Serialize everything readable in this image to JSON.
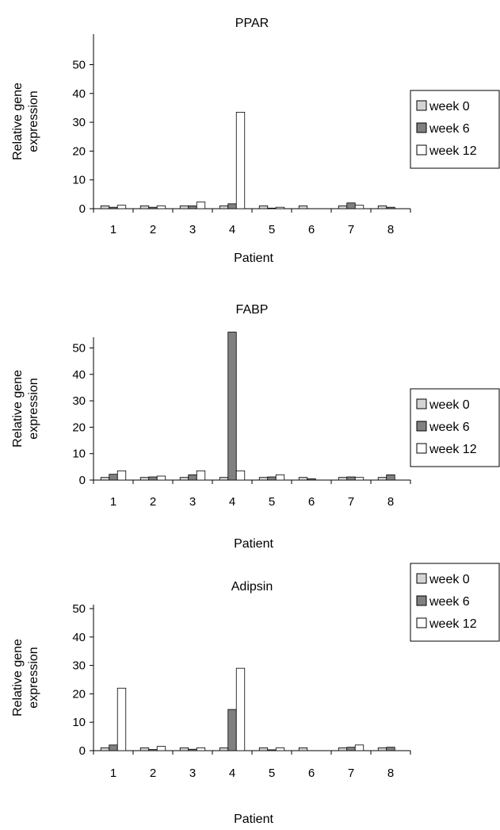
{
  "chart_data": [
    {
      "type": "bar",
      "title": "PPAR",
      "xlabel": "Patient",
      "ylabel": [
        "Relative gene",
        "expression"
      ],
      "categories": [
        "1",
        "2",
        "3",
        "4",
        "5",
        "6",
        "7",
        "8"
      ],
      "ylim": [
        0,
        50
      ],
      "yticks": [
        "0",
        "10",
        "20",
        "30",
        "40",
        "50"
      ],
      "series": [
        {
          "name": "week 0",
          "color": "#d4d4d4",
          "values": [
            1,
            1,
            1,
            1,
            1,
            1,
            1,
            1
          ]
        },
        {
          "name": "week 6",
          "color": "#808080",
          "values": [
            0.5,
            0.5,
            1,
            1.7,
            0.2,
            0,
            2,
            0.5
          ]
        },
        {
          "name": "week 12",
          "color": "#ffffff",
          "values": [
            1.2,
            1,
            2.3,
            33.5,
            0.5,
            0,
            1.2,
            0
          ]
        }
      ],
      "legend_position": "right"
    },
    {
      "type": "bar",
      "title": "FABP",
      "xlabel": "Patient",
      "ylabel": [
        "Relative gene",
        "expression"
      ],
      "categories": [
        "1",
        "2",
        "3",
        "4",
        "5",
        "6",
        "7",
        "8"
      ],
      "ylim": [
        0,
        55
      ],
      "yticks": [
        "0",
        "10",
        "20",
        "30",
        "40",
        "50"
      ],
      "series": [
        {
          "name": "week 0",
          "color": "#d4d4d4",
          "values": [
            1,
            1,
            1,
            1,
            1,
            1,
            1,
            1
          ]
        },
        {
          "name": "week 6",
          "color": "#808080",
          "values": [
            2.2,
            1.2,
            2,
            56,
            1.2,
            0.5,
            1.2,
            2
          ]
        },
        {
          "name": "week 12",
          "color": "#ffffff",
          "values": [
            3.5,
            1.5,
            3.5,
            3.5,
            2,
            0,
            1,
            0
          ]
        }
      ],
      "legend_position": "right"
    },
    {
      "type": "bar",
      "title": "Adipsin",
      "xlabel": "Patient",
      "ylabel": [
        "Relative gene",
        "expression"
      ],
      "categories": [
        "1",
        "2",
        "3",
        "4",
        "5",
        "6",
        "7",
        "8"
      ],
      "ylim": [
        0,
        50
      ],
      "yticks": [
        "0",
        "10",
        "20",
        "30",
        "40",
        "50"
      ],
      "series": [
        {
          "name": "week 0",
          "color": "#d4d4d4",
          "values": [
            1,
            1,
            1,
            1,
            1,
            1,
            1,
            1
          ]
        },
        {
          "name": "week 6",
          "color": "#808080",
          "values": [
            2,
            0.4,
            0.5,
            14.5,
            0.3,
            0,
            1.2,
            1.2
          ]
        },
        {
          "name": "week 12",
          "color": "#ffffff",
          "values": [
            22,
            1.5,
            1,
            29,
            1,
            0,
            2,
            0
          ]
        }
      ],
      "legend_position": "right"
    }
  ]
}
